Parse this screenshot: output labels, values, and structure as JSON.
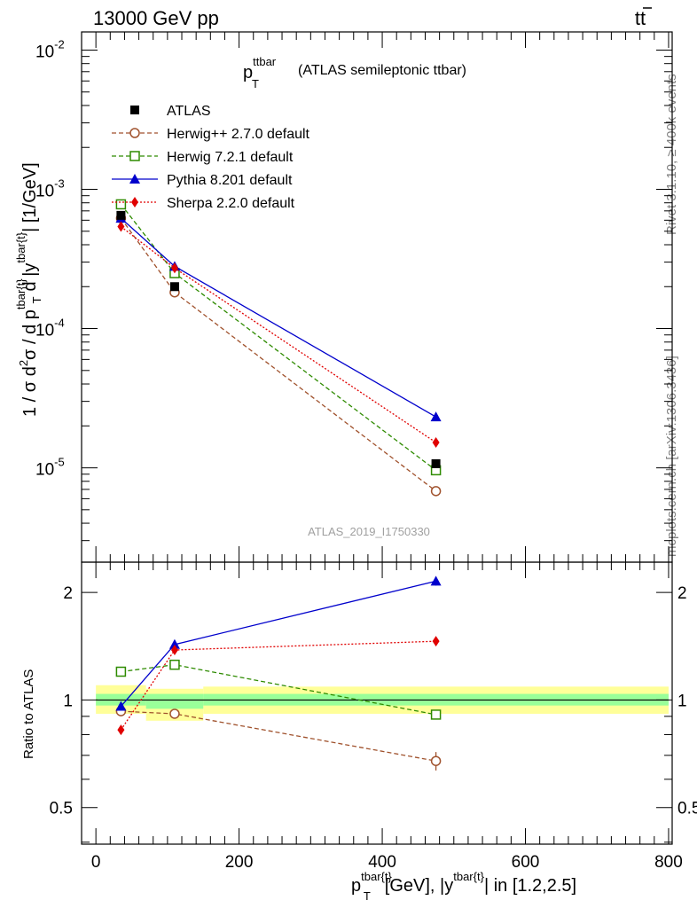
{
  "header": {
    "left": "13000 GeV pp",
    "right_main": "tt",
    "right_bar": "̄"
  },
  "plot_title": {
    "main": "p",
    "sup": "ttbar",
    "sub": "T",
    "rest": "(ATLAS semileptonic ttbar)"
  },
  "side_labels": {
    "rivet": "Rivet 3.1.10, ≥ 400k events",
    "mcplots": "mcplots.cern.ch [arXiv:1306.3436]"
  },
  "watermark": "ATLAS_2019_I1750330",
  "ylabel_top": {
    "a": "1 / σ d",
    "a_sup": "2",
    "b": "σ / d p",
    "b_sup": "tbar{t}",
    "b_sub": "T",
    "c": "d |y",
    "c_sup": "tbar{t}",
    "d": "| [1/GeV]"
  },
  "ylabel_bottom": "Ratio to ATLAS",
  "xlabel": {
    "a": "p",
    "a_sup": "tbar{t}",
    "a_sub": "T",
    "b": "[GeV], |y",
    "b_sup": "tbar{t}",
    "c": "| in [1.2,2.5]"
  },
  "chart_data": [
    {
      "type": "line",
      "panel": "main",
      "yscale": "log",
      "xlim": [
        -20,
        805
      ],
      "ylim": [
        2.1e-06,
        0.0135
      ],
      "ytick_labels": [
        {
          "base": "10",
          "exp": "-2",
          "value": 0.01
        },
        {
          "base": "10",
          "exp": "-3",
          "value": 0.001
        },
        {
          "base": "10",
          "exp": "-4",
          "value": 0.0001
        },
        {
          "base": "10",
          "exp": "-5",
          "value": 1e-05
        }
      ],
      "legend_position": "top-left",
      "series": [
        {
          "name": "ATLAS",
          "marker": "square-filled",
          "color": "#000000",
          "line": "none",
          "x": [
            35,
            110,
            475
          ],
          "y": [
            0.00065,
            0.0002,
            1.07e-05
          ]
        },
        {
          "name": "Herwig++ 2.7.0 default",
          "marker": "circle-open",
          "color": "#a0522d",
          "line": "dashed",
          "x": [
            35,
            110,
            475
          ],
          "y": [
            0.00062,
            0.000182,
            6.8e-06
          ]
        },
        {
          "name": "Herwig 7.2.1 default",
          "marker": "square-open",
          "color": "#2e8b00",
          "line": "dashed",
          "x": [
            35,
            110,
            475
          ],
          "y": [
            0.00078,
            0.00025,
            9.6e-06
          ]
        },
        {
          "name": "Pythia 8.201 default",
          "marker": "triangle-filled",
          "color": "#0000cc",
          "line": "solid",
          "x": [
            35,
            110,
            475
          ],
          "y": [
            0.00062,
            0.00028,
            2.32e-05
          ]
        },
        {
          "name": "Sherpa 2.2.0 default",
          "marker": "diamond-filled",
          "color": "#e00000",
          "line": "dotted",
          "x": [
            35,
            110,
            475
          ],
          "y": [
            0.00054,
            0.000272,
            1.52e-05
          ]
        }
      ]
    },
    {
      "type": "line",
      "panel": "ratio",
      "yscale": "log",
      "xlim": [
        -20,
        805
      ],
      "ylim": [
        0.395,
        2.43
      ],
      "ytick_labels": [
        {
          "label": "2",
          "value": 2
        },
        {
          "label": "1",
          "value": 1
        },
        {
          "label": "0.5",
          "value": 0.5
        }
      ],
      "xtick_labels": [
        {
          "label": "0",
          "value": 0
        },
        {
          "label": "200",
          "value": 200
        },
        {
          "label": "400",
          "value": 400
        },
        {
          "label": "600",
          "value": 600
        },
        {
          "label": "800",
          "value": 800
        }
      ],
      "bands": {
        "bins": [
          [
            0,
            70
          ],
          [
            70,
            150
          ],
          [
            150,
            800
          ]
        ],
        "total_yellow": [
          [
            0.915,
            1.1
          ],
          [
            0.875,
            1.075
          ],
          [
            0.915,
            1.09
          ]
        ],
        "stat_green": [
          [
            0.965,
            1.04
          ],
          [
            0.945,
            1.04
          ],
          [
            0.965,
            1.04
          ]
        ],
        "yellow_color": "#ffff99",
        "green_color": "#99ff99"
      },
      "series": [
        {
          "name": "Herwig++ 2.7.0 default",
          "x": [
            35,
            110,
            475
          ],
          "y": [
            0.93,
            0.915,
            0.675
          ],
          "err": [
            0.0,
            0.0,
            0.04
          ]
        },
        {
          "name": "Herwig 7.2.1 default",
          "x": [
            35,
            110,
            475
          ],
          "y": [
            1.2,
            1.255,
            0.91
          ],
          "err": [
            0.0,
            0.0,
            0.0
          ]
        },
        {
          "name": "Pythia 8.201 default",
          "x": [
            35,
            110,
            475
          ],
          "y": [
            0.96,
            1.43,
            2.15
          ],
          "err": [
            0.0,
            0.03,
            0.06
          ]
        },
        {
          "name": "Sherpa 2.2.0 default",
          "x": [
            35,
            110,
            475
          ],
          "y": [
            0.825,
            1.38,
            1.46
          ],
          "err": [
            0.0,
            0.0,
            0.0
          ]
        }
      ]
    }
  ]
}
